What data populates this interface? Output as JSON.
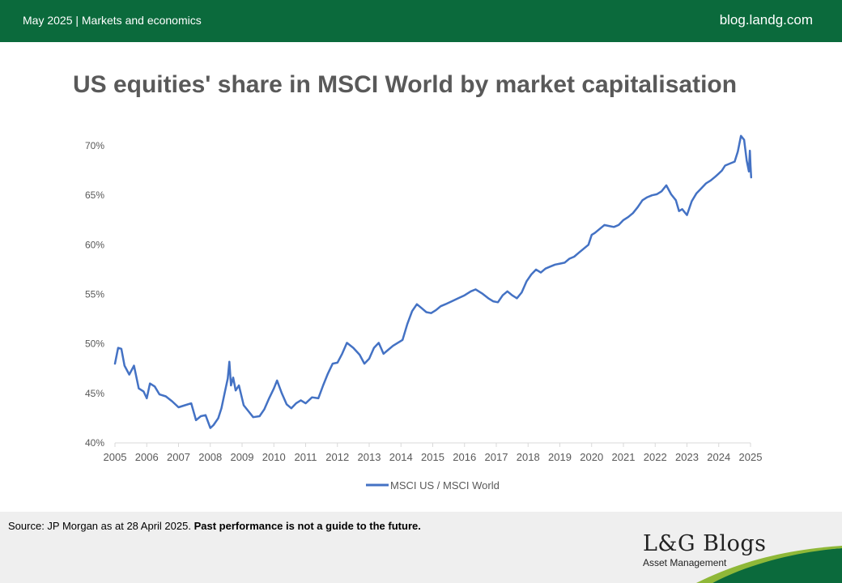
{
  "header": {
    "date_section": "May 2025 | Markets and economics",
    "site": "blog.landg.com"
  },
  "chart_data": {
    "type": "line",
    "title": "US equities' share in MSCI World by market capitalisation",
    "xlabel": "",
    "ylabel": "",
    "x_ticks": [
      "2005",
      "2006",
      "2007",
      "2008",
      "2009",
      "2010",
      "2011",
      "2012",
      "2013",
      "2014",
      "2015",
      "2016",
      "2017",
      "2018",
      "2019",
      "2020",
      "2021",
      "2022",
      "2023",
      "2024",
      "2025"
    ],
    "y_ticks": [
      "40%",
      "45%",
      "50%",
      "55%",
      "60%",
      "65%",
      "70%"
    ],
    "xlim": [
      2005,
      2025
    ],
    "ylim": [
      40,
      70
    ],
    "grid": false,
    "legend_position": "bottom",
    "colors": {
      "line": "#4472c4",
      "axis": "#d9d9d9"
    },
    "series": [
      {
        "name": "MSCI US / MSCI World",
        "x": [
          2005.0,
          2005.1,
          2005.2,
          2005.3,
          2005.45,
          2005.6,
          2005.75,
          2005.9,
          2006.0,
          2006.1,
          2006.25,
          2006.4,
          2006.6,
          2006.8,
          2007.0,
          2007.2,
          2007.4,
          2007.55,
          2007.7,
          2007.85,
          2008.0,
          2008.1,
          2008.25,
          2008.35,
          2008.45,
          2008.55,
          2008.6,
          2008.65,
          2008.72,
          2008.8,
          2008.9,
          2009.05,
          2009.2,
          2009.35,
          2009.55,
          2009.7,
          2009.85,
          2010.0,
          2010.1,
          2010.25,
          2010.4,
          2010.55,
          2010.7,
          2010.85,
          2011.0,
          2011.2,
          2011.4,
          2011.55,
          2011.7,
          2011.85,
          2012.0,
          2012.15,
          2012.3,
          2012.5,
          2012.7,
          2012.85,
          2013.0,
          2013.15,
          2013.3,
          2013.45,
          2013.6,
          2013.75,
          2013.9,
          2014.05,
          2014.2,
          2014.35,
          2014.5,
          2014.65,
          2014.8,
          2014.95,
          2015.1,
          2015.25,
          2015.4,
          2015.6,
          2015.8,
          2016.0,
          2016.2,
          2016.35,
          2016.55,
          2016.75,
          2016.9,
          2017.05,
          2017.2,
          2017.35,
          2017.5,
          2017.65,
          2017.8,
          2017.95,
          2018.1,
          2018.25,
          2018.4,
          2018.55,
          2018.7,
          2018.85,
          2019.0,
          2019.15,
          2019.3,
          2019.45,
          2019.6,
          2019.75,
          2019.9,
          2020.0,
          2020.1,
          2020.25,
          2020.4,
          2020.55,
          2020.7,
          2020.85,
          2021.0,
          2021.15,
          2021.3,
          2021.45,
          2021.6,
          2021.75,
          2021.9,
          2022.05,
          2022.2,
          2022.35,
          2022.5,
          2022.65,
          2022.75,
          2022.85,
          2023.0,
          2023.15,
          2023.3,
          2023.45,
          2023.6,
          2023.75,
          2023.9,
          2024.0,
          2024.1,
          2024.2,
          2024.35,
          2024.5,
          2024.6,
          2024.7,
          2024.8,
          2024.88,
          2024.95,
          2024.98,
          2025.0,
          2025.02
        ],
        "values": [
          48.0,
          49.6,
          49.5,
          47.8,
          46.9,
          47.8,
          45.5,
          45.2,
          44.5,
          46.0,
          45.7,
          44.9,
          44.7,
          44.2,
          43.6,
          43.8,
          44.0,
          42.3,
          42.7,
          42.8,
          41.5,
          41.8,
          42.5,
          43.5,
          45.0,
          46.5,
          48.2,
          45.8,
          46.6,
          45.3,
          45.8,
          43.8,
          43.2,
          42.6,
          42.7,
          43.4,
          44.5,
          45.5,
          46.3,
          45.0,
          43.9,
          43.5,
          44.0,
          44.3,
          44.0,
          44.6,
          44.5,
          45.8,
          47.0,
          48.0,
          48.1,
          49.0,
          50.1,
          49.6,
          48.9,
          48.0,
          48.5,
          49.6,
          50.1,
          49.0,
          49.4,
          49.8,
          50.1,
          50.4,
          52.0,
          53.3,
          54.0,
          53.6,
          53.2,
          53.1,
          53.4,
          53.8,
          54.0,
          54.3,
          54.6,
          54.9,
          55.3,
          55.5,
          55.1,
          54.6,
          54.3,
          54.2,
          54.9,
          55.3,
          54.9,
          54.6,
          55.2,
          56.3,
          57.0,
          57.5,
          57.2,
          57.6,
          57.8,
          58.0,
          58.1,
          58.2,
          58.6,
          58.8,
          59.2,
          59.6,
          60.0,
          61.0,
          61.2,
          61.6,
          62.0,
          61.9,
          61.8,
          62.0,
          62.5,
          62.8,
          63.2,
          63.8,
          64.5,
          64.8,
          65.0,
          65.1,
          65.4,
          66.0,
          65.1,
          64.5,
          63.4,
          63.6,
          63.0,
          64.4,
          65.2,
          65.7,
          66.2,
          66.5,
          66.9,
          67.2,
          67.5,
          68.0,
          68.2,
          68.4,
          69.4,
          71.0,
          70.6,
          68.5,
          67.4,
          69.5,
          68.0,
          66.8
        ]
      }
    ]
  },
  "footer": {
    "source_text": "Source: JP Morgan as at 28 April 2025. ",
    "disclaimer": "Past performance is not a guide to the future.",
    "brand_name": "L&G Blogs",
    "brand_subtitle": "Asset Management"
  }
}
